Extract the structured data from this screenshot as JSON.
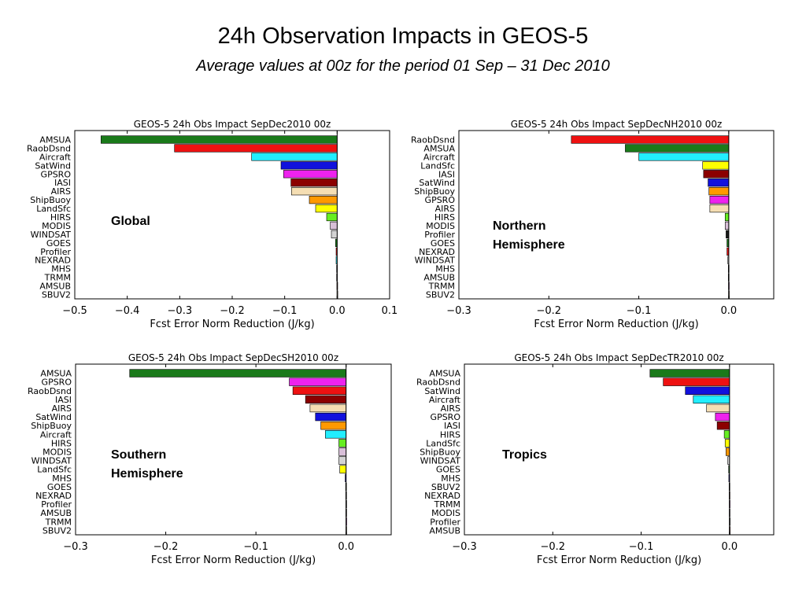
{
  "slide": {
    "title": "24h Observation Impacts in GEOS-5",
    "subtitle": "Average values at 00z for the period 01 Sep – 31 Dec 2010"
  },
  "chart_data": [
    {
      "type": "bar",
      "orientation": "horizontal",
      "title": "GEOS-5 24h Obs Impact SepDec2010 00z",
      "region_label": [
        "Global"
      ],
      "xlabel": "Fcst Error Norm Reduction (J/kg)",
      "xlim": [
        -0.5,
        0.1
      ],
      "xticks": [
        -0.5,
        -0.4,
        -0.3,
        -0.2,
        -0.1,
        0.0,
        0.1
      ],
      "xtick_labels": [
        "−0.5",
        "−0.4",
        "−0.3",
        "−0.2",
        "−0.1",
        "0.0",
        "0.1"
      ],
      "categories": [
        "AMSUA",
        "RaobDsnd",
        "Aircraft",
        "SatWind",
        "GPSRO",
        "IASI",
        "AIRS",
        "ShipBuoy",
        "LandSfc",
        "HIRS",
        "MODIS",
        "WINDSAT",
        "GOES",
        "Profiler",
        "NEXRAD",
        "MHS",
        "TRMM",
        "AMSUB",
        "SBUV2"
      ],
      "values": [
        -0.45,
        -0.31,
        -0.163,
        -0.107,
        -0.102,
        -0.088,
        -0.087,
        -0.053,
        -0.041,
        -0.02,
        -0.013,
        -0.011,
        -0.003,
        -0.002,
        -0.002,
        -0.001,
        -0.001,
        -0.0005,
        -0.0003
      ],
      "colors": [
        "#1a7a1a",
        "#ee1111",
        "#22eeff",
        "#1111dd",
        "#ee22ee",
        "#8b0000",
        "#f5deb3",
        "#ff9900",
        "#ffff00",
        "#66ee22",
        "#d8bfd8",
        "#d3d3d3",
        "#1a7a1a",
        "#ee1111",
        "#22eeff",
        "#1111dd",
        "#ee22ee",
        "#8b0000",
        "#f5deb3"
      ]
    },
    {
      "type": "bar",
      "orientation": "horizontal",
      "title": "GEOS-5 24h Obs Impact SepDecNH2010 00z",
      "region_label": [
        "Northern",
        "Hemisphere"
      ],
      "xlabel": "Fcst Error Norm Reduction (J/kg)",
      "xlim": [
        -0.3,
        0.05
      ],
      "xticks": [
        -0.3,
        -0.2,
        -0.1,
        0.0
      ],
      "xtick_labels": [
        "−0.3",
        "−0.2",
        "−0.1",
        "0.0"
      ],
      "categories": [
        "RaobDsnd",
        "AMSUA",
        "Aircraft",
        "LandSfc",
        "IASI",
        "SatWind",
        "ShipBuoy",
        "GPSRO",
        "AIRS",
        "HIRS",
        "MODIS",
        "Profiler",
        "GOES",
        "NEXRAD",
        "WINDSAT",
        "MHS",
        "AMSUB",
        "TRMM",
        "SBUV2"
      ],
      "values": [
        -0.175,
        -0.115,
        -0.1,
        -0.029,
        -0.028,
        -0.023,
        -0.022,
        -0.021,
        -0.021,
        -0.004,
        -0.004,
        -0.003,
        -0.002,
        -0.002,
        -0.001,
        -0.0005,
        -0.0005,
        -0.0003,
        -0.0002
      ],
      "colors": [
        "#ee1111",
        "#1a7a1a",
        "#22eeff",
        "#ffff00",
        "#8b0000",
        "#1111dd",
        "#ff9900",
        "#ee22ee",
        "#f5deb3",
        "#66ee22",
        "#d8bfd8",
        "#1a1a1a",
        "#1a7a1a",
        "#ee1111",
        "#d3d3d3",
        "#1111dd",
        "#8b0000",
        "#ee22ee",
        "#f5deb3"
      ]
    },
    {
      "type": "bar",
      "orientation": "horizontal",
      "title": "GEOS-5 24h Obs Impact SepDecSH2010 00z",
      "region_label": [
        "Southern",
        "Hemisphere"
      ],
      "xlabel": "Fcst Error Norm Reduction (J/kg)",
      "xlim": [
        -0.3,
        0.05
      ],
      "xticks": [
        -0.3,
        -0.2,
        -0.1,
        0.0
      ],
      "xtick_labels": [
        "−0.3",
        "−0.2",
        "−0.1",
        "0.0"
      ],
      "categories": [
        "AMSUA",
        "GPSRO",
        "RaobDsnd",
        "IASI",
        "AIRS",
        "SatWind",
        "ShipBuoy",
        "Aircraft",
        "HIRS",
        "MODIS",
        "WINDSAT",
        "LandSfc",
        "MHS",
        "GOES",
        "NEXRAD",
        "Profiler",
        "AMSUB",
        "TRMM",
        "SBUV2"
      ],
      "values": [
        -0.24,
        -0.063,
        -0.059,
        -0.045,
        -0.04,
        -0.034,
        -0.028,
        -0.023,
        -0.008,
        -0.008,
        -0.008,
        -0.007,
        -0.001,
        -0.0005,
        -0.0004,
        -0.0003,
        -0.0003,
        -0.0002,
        -0.0002
      ],
      "colors": [
        "#1a7a1a",
        "#ee22ee",
        "#ee1111",
        "#8b0000",
        "#f5deb3",
        "#1111dd",
        "#ff9900",
        "#22eeff",
        "#66ee22",
        "#d8bfd8",
        "#d3d3d3",
        "#ffff00",
        "#1111dd",
        "#1a7a1a",
        "#ee1111",
        "#1a1a1a",
        "#8b0000",
        "#ee22ee",
        "#f5deb3"
      ]
    },
    {
      "type": "bar",
      "orientation": "horizontal",
      "title": "GEOS-5 24h Obs Impact SepDecTR2010 00z",
      "region_label": [
        "Tropics"
      ],
      "xlabel": "Fcst Error Norm Reduction (J/kg)",
      "xlim": [
        -0.3,
        0.05
      ],
      "xticks": [
        -0.3,
        -0.2,
        -0.1,
        0.0
      ],
      "xtick_labels": [
        "−0.3",
        "−0.2",
        "−0.1",
        "0.0"
      ],
      "categories": [
        "AMSUA",
        "RaobDsnd",
        "SatWind",
        "Aircraft",
        "AIRS",
        "GPSRO",
        "IASI",
        "HIRS",
        "LandSfc",
        "ShipBuoy",
        "WINDSAT",
        "GOES",
        "MHS",
        "SBUV2",
        "NEXRAD",
        "TRMM",
        "MODIS",
        "Profiler",
        "AMSUB"
      ],
      "values": [
        -0.09,
        -0.075,
        -0.05,
        -0.041,
        -0.026,
        -0.016,
        -0.014,
        -0.006,
        -0.005,
        -0.004,
        -0.002,
        -0.001,
        -0.0008,
        -0.0005,
        -0.0004,
        -0.0003,
        -0.0003,
        -0.0002,
        -0.0002
      ],
      "colors": [
        "#1a7a1a",
        "#ee1111",
        "#1111dd",
        "#22eeff",
        "#f5deb3",
        "#ee22ee",
        "#8b0000",
        "#66ee22",
        "#ffff00",
        "#ff9900",
        "#d3d3d3",
        "#1a7a1a",
        "#1111dd",
        "#f5deb3",
        "#ee1111",
        "#ee22ee",
        "#d8bfd8",
        "#1a1a1a",
        "#8b0000"
      ]
    }
  ]
}
